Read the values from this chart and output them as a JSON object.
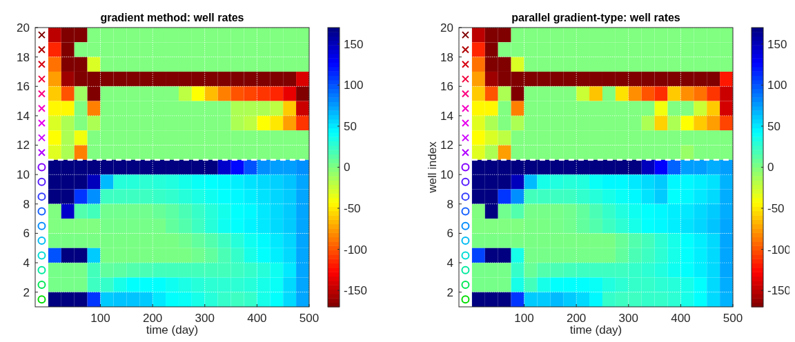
{
  "chart_data": [
    {
      "type": "heatmap",
      "title": "gradient method: well rates",
      "xlabel": "time (day)",
      "x": [
        12.5,
        37.5,
        62.5,
        87.5,
        112.5,
        137.5,
        162.5,
        187.5,
        212.5,
        237.5,
        262.5,
        287.5,
        312.5,
        337.5,
        362.5,
        387.5,
        412.5,
        437.5,
        462.5,
        487.5
      ],
      "xlim": [
        -25,
        500
      ],
      "xticks": [
        100,
        200,
        300,
        400,
        500
      ],
      "ylim": [
        1,
        20
      ],
      "yticks": [
        2,
        4,
        6,
        8,
        10,
        12,
        14,
        16,
        18,
        20
      ],
      "grid": true,
      "clim": [
        -170,
        170
      ],
      "cticks": [
        -150,
        -100,
        -50,
        0,
        50,
        100,
        150
      ],
      "ref_lines": [
        {
          "axis": "y",
          "value": 11,
          "color": "#ffffff",
          "line_style": "dashed"
        }
      ],
      "cells": [
        [
          -150,
          -170,
          -170,
          0,
          0,
          0,
          0,
          0,
          0,
          0,
          0,
          0,
          0,
          0,
          0,
          0,
          0,
          0,
          0,
          0
        ],
        [
          -115,
          -170,
          0,
          0,
          0,
          0,
          0,
          0,
          0,
          0,
          0,
          0,
          0,
          0,
          0,
          0,
          0,
          0,
          0,
          0
        ],
        [
          -90,
          -170,
          -170,
          -30,
          0,
          0,
          0,
          0,
          0,
          0,
          0,
          0,
          0,
          0,
          0,
          0,
          0,
          0,
          0,
          0
        ],
        [
          -75,
          -160,
          -170,
          -170,
          -170,
          -170,
          -170,
          -170,
          -170,
          -170,
          -170,
          -170,
          -170,
          -170,
          -170,
          -170,
          -170,
          -170,
          -170,
          -140
        ],
        [
          -60,
          -100,
          -10,
          -170,
          0,
          0,
          0,
          0,
          0,
          0,
          -20,
          -42,
          -65,
          -85,
          -100,
          -105,
          -110,
          -115,
          -135,
          -170
        ],
        [
          -45,
          -45,
          0,
          -85,
          0,
          0,
          0,
          0,
          0,
          0,
          0,
          0,
          0,
          0,
          -15,
          -15,
          -15,
          -20,
          -60,
          -145
        ],
        [
          -30,
          -15,
          0,
          -15,
          0,
          0,
          0,
          0,
          0,
          0,
          0,
          0,
          0,
          0,
          -15,
          -20,
          -42,
          -50,
          -75,
          -110
        ],
        [
          -42,
          -15,
          -38,
          0,
          0,
          0,
          0,
          0,
          0,
          0,
          0,
          0,
          0,
          0,
          0,
          0,
          0,
          0,
          0,
          0
        ],
        [
          -32,
          -15,
          -85,
          0,
          0,
          0,
          0,
          0,
          0,
          0,
          0,
          0,
          0,
          0,
          0,
          0,
          0,
          0,
          0,
          0
        ],
        [
          170,
          170,
          170,
          170,
          170,
          170,
          170,
          170,
          170,
          170,
          170,
          170,
          170,
          145,
          125,
          100,
          80,
          75,
          75,
          80
        ],
        [
          170,
          170,
          170,
          150,
          65,
          30,
          30,
          28,
          30,
          32,
          36,
          40,
          42,
          45,
          48,
          52,
          55,
          58,
          62,
          72
        ],
        [
          170,
          170,
          110,
          80,
          22,
          22,
          22,
          22,
          24,
          26,
          30,
          34,
          38,
          42,
          45,
          48,
          52,
          56,
          60,
          72
        ],
        [
          0,
          145,
          15,
          20,
          5,
          5,
          5,
          5,
          8,
          12,
          18,
          24,
          30,
          36,
          42,
          45,
          50,
          55,
          60,
          72
        ],
        [
          0,
          0,
          0,
          0,
          3,
          3,
          3,
          3,
          3,
          10,
          15,
          22,
          30,
          38,
          42,
          46,
          50,
          55,
          60,
          72
        ],
        [
          2,
          2,
          2,
          2,
          2,
          2,
          2,
          2,
          2,
          2,
          5,
          10,
          15,
          22,
          30,
          38,
          44,
          50,
          56,
          72
        ],
        [
          100,
          170,
          170,
          60,
          2,
          2,
          2,
          2,
          2,
          2,
          2,
          5,
          10,
          18,
          25,
          35,
          42,
          48,
          55,
          72
        ],
        [
          3,
          3,
          3,
          20,
          10,
          12,
          15,
          18,
          20,
          20,
          20,
          20,
          20,
          20,
          22,
          25,
          30,
          38,
          50,
          72
        ],
        [
          3,
          3,
          3,
          22,
          25,
          35,
          42,
          42,
          42,
          38,
          34,
          30,
          28,
          28,
          28,
          30,
          35,
          40,
          55,
          72
        ],
        [
          170,
          170,
          170,
          110,
          60,
          62,
          62,
          60,
          50,
          42,
          40,
          35,
          30,
          25,
          22,
          25,
          35,
          42,
          55,
          72
        ]
      ]
    },
    {
      "type": "heatmap",
      "title": "parallel gradient-type: well rates",
      "xlabel": "time (day)",
      "ylabel": "well index",
      "x": [
        12.5,
        37.5,
        62.5,
        87.5,
        112.5,
        137.5,
        162.5,
        187.5,
        212.5,
        237.5,
        262.5,
        287.5,
        312.5,
        337.5,
        362.5,
        387.5,
        412.5,
        437.5,
        462.5,
        487.5
      ],
      "xlim": [
        -25,
        500
      ],
      "xticks": [
        100,
        200,
        300,
        400,
        500
      ],
      "ylim": [
        1,
        20
      ],
      "yticks": [
        2,
        4,
        6,
        8,
        10,
        12,
        14,
        16,
        18,
        20
      ],
      "grid": true,
      "clim": [
        -170,
        170
      ],
      "cticks": [
        -150,
        -100,
        -50,
        0,
        50,
        100,
        150
      ],
      "ref_lines": [
        {
          "axis": "y",
          "value": 11,
          "color": "#ffffff",
          "line_style": "dashed"
        }
      ],
      "cells": [
        [
          -150,
          -170,
          -170,
          0,
          0,
          0,
          0,
          0,
          0,
          0,
          0,
          0,
          0,
          0,
          0,
          0,
          0,
          0,
          0,
          0
        ],
        [
          -115,
          -170,
          0,
          0,
          0,
          0,
          0,
          0,
          0,
          0,
          0,
          0,
          0,
          0,
          0,
          0,
          0,
          0,
          0,
          0
        ],
        [
          -90,
          -170,
          -170,
          -30,
          0,
          0,
          0,
          0,
          0,
          0,
          0,
          0,
          0,
          0,
          0,
          0,
          0,
          0,
          0,
          0
        ],
        [
          -75,
          -160,
          -170,
          -170,
          -170,
          -170,
          -170,
          -170,
          -170,
          -170,
          -170,
          -170,
          -170,
          -170,
          -170,
          -170,
          -170,
          -170,
          -170,
          -120
        ],
        [
          -60,
          -100,
          -15,
          -170,
          0,
          0,
          0,
          0,
          -25,
          -62,
          0,
          -52,
          -80,
          -100,
          -112,
          -60,
          -80,
          -90,
          -110,
          -145
        ],
        [
          -45,
          -45,
          0,
          -85,
          0,
          0,
          0,
          0,
          0,
          0,
          0,
          0,
          0,
          0,
          -38,
          0,
          0,
          -25,
          -60,
          -142
        ],
        [
          -32,
          -15,
          0,
          -15,
          0,
          0,
          0,
          0,
          0,
          0,
          0,
          0,
          0,
          -15,
          -58,
          -15,
          -42,
          -60,
          -75,
          -105
        ],
        [
          -42,
          -30,
          -20,
          0,
          0,
          0,
          0,
          0,
          0,
          0,
          0,
          0,
          0,
          0,
          0,
          0,
          0,
          0,
          0,
          0
        ],
        [
          -32,
          -15,
          -75,
          0,
          0,
          0,
          0,
          0,
          0,
          0,
          0,
          0,
          0,
          0,
          0,
          0,
          -8,
          0,
          0,
          0
        ],
        [
          170,
          170,
          170,
          170,
          170,
          170,
          170,
          170,
          170,
          170,
          170,
          170,
          170,
          150,
          128,
          95,
          75,
          75,
          70,
          75
        ],
        [
          170,
          170,
          170,
          150,
          65,
          35,
          32,
          30,
          32,
          40,
          45,
          45,
          50,
          55,
          60,
          45,
          45,
          48,
          52,
          68
        ],
        [
          170,
          170,
          110,
          80,
          20,
          22,
          22,
          22,
          26,
          30,
          35,
          40,
          45,
          52,
          60,
          42,
          45,
          50,
          55,
          70
        ],
        [
          0,
          170,
          5,
          15,
          3,
          3,
          3,
          5,
          10,
          18,
          25,
          32,
          38,
          42,
          45,
          48,
          50,
          55,
          60,
          70
        ],
        [
          0,
          0,
          0,
          0,
          2,
          2,
          3,
          5,
          10,
          15,
          22,
          28,
          35,
          42,
          45,
          48,
          52,
          56,
          62,
          72
        ],
        [
          2,
          2,
          2,
          2,
          2,
          2,
          2,
          2,
          2,
          2,
          2,
          8,
          15,
          20,
          28,
          35,
          42,
          48,
          55,
          72
        ],
        [
          105,
          170,
          170,
          35,
          3,
          3,
          3,
          3,
          3,
          3,
          3,
          10,
          18,
          22,
          28,
          35,
          42,
          48,
          55,
          72
        ],
        [
          3,
          3,
          3,
          25,
          8,
          15,
          18,
          20,
          22,
          22,
          22,
          22,
          25,
          28,
          32,
          38,
          42,
          48,
          55,
          72
        ],
        [
          3,
          3,
          3,
          35,
          20,
          35,
          42,
          42,
          42,
          40,
          32,
          28,
          25,
          25,
          28,
          30,
          35,
          42,
          55,
          70
        ],
        [
          170,
          170,
          170,
          110,
          60,
          60,
          65,
          60,
          55,
          45,
          25,
          22,
          22,
          25,
          25,
          28,
          35,
          42,
          55,
          68
        ]
      ]
    }
  ]
}
